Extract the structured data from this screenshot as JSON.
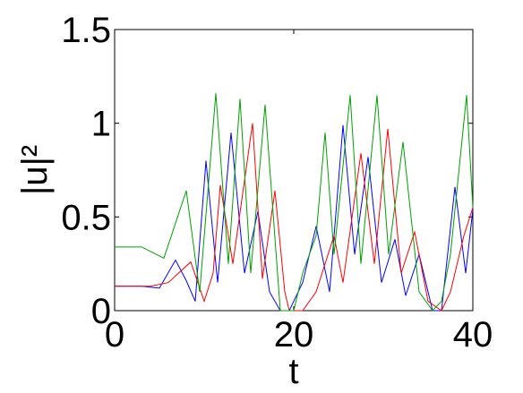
{
  "chart_data": {
    "type": "line",
    "xlabel": "t",
    "ylabel": "|u|²",
    "xlim": [
      0,
      40
    ],
    "ylim": [
      0,
      1.5
    ],
    "xticks": [
      0,
      20,
      40
    ],
    "yticks": [
      0,
      0.5,
      1,
      1.5
    ],
    "series": [
      {
        "color": "#0000ff",
        "x": [
          0,
          3,
          5,
          6.8,
          8,
          9,
          10.2,
          11.5,
          13,
          14.5,
          16,
          17.3,
          18.5,
          19.5,
          21,
          22.5,
          24,
          25.5,
          26.8,
          28.3,
          29.8,
          31.3,
          32.5,
          34,
          35.5,
          36.5,
          38,
          39.2,
          40
        ],
        "values": [
          0.13,
          0.13,
          0.12,
          0.27,
          0.16,
          0.05,
          0.8,
          0.15,
          0.95,
          0.2,
          0.53,
          0.1,
          0,
          0,
          0.15,
          0.45,
          0.1,
          0.99,
          0.3,
          0.82,
          0.15,
          0.38,
          0.08,
          0.3,
          0,
          0,
          0.66,
          0.2,
          0.54
        ]
      },
      {
        "color": "#ff0000",
        "x": [
          0,
          4,
          6,
          8.5,
          10,
          11,
          11.8,
          13.2,
          15.4,
          16.5,
          17.9,
          19,
          19.5,
          21,
          22.5,
          24.5,
          25.5,
          27.5,
          29,
          30.5,
          32,
          33.5,
          35,
          36.5,
          37.5,
          39,
          40
        ],
        "values": [
          0.13,
          0.13,
          0.15,
          0.26,
          0.05,
          0.2,
          0.67,
          0.25,
          1.0,
          0.17,
          0.64,
          0.1,
          0,
          0,
          0.1,
          0.4,
          0.15,
          0.84,
          0.25,
          0.97,
          0.2,
          0.42,
          0.05,
          0,
          0.1,
          0.4,
          0.55
        ]
      },
      {
        "color": "#00a000",
        "x": [
          0,
          3,
          5.5,
          8,
          9.5,
          11.3,
          12.7,
          14,
          15.2,
          16.8,
          18.5,
          20,
          21,
          22.5,
          23.5,
          24.5,
          26.3,
          27.5,
          29.3,
          30.6,
          32.2,
          34,
          35.5,
          36.5,
          37.5,
          39.3,
          40
        ],
        "values": [
          0.34,
          0.34,
          0.28,
          0.64,
          0.1,
          1.16,
          0.25,
          1.13,
          0.2,
          1.1,
          0,
          0,
          0.2,
          0.4,
          0.95,
          0.3,
          1.15,
          0.25,
          1.15,
          0.3,
          0.9,
          0.1,
          0,
          0.05,
          0.3,
          1.15,
          0.55
        ]
      }
    ]
  }
}
